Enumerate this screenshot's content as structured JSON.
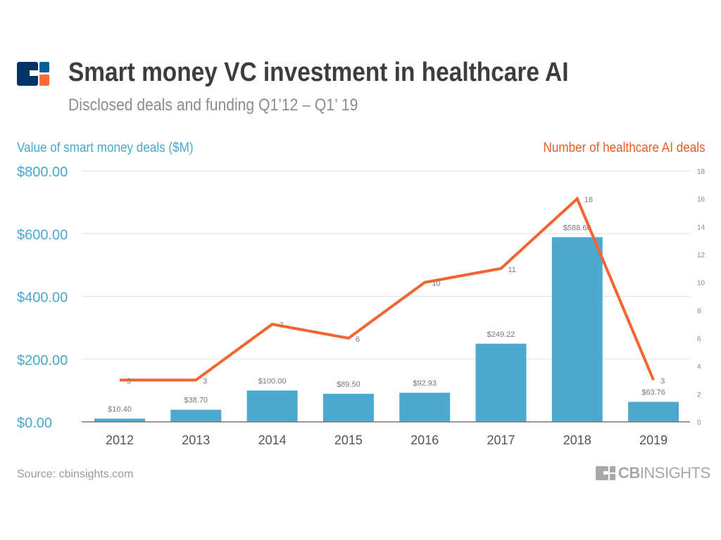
{
  "title": "Smart money VC investment in healthcare AI",
  "subtitle": "Disclosed deals and funding Q1’12 – Q1’ 19",
  "source": "Source: cbinsights.com",
  "brand": {
    "bold": "CB",
    "light": "INSIGHTS"
  },
  "colors": {
    "bars": "#4ea9cf",
    "line": "#f26531",
    "left_axis": "#4aa8cf",
    "right_axis": "#f15a24"
  },
  "chart_data": {
    "type": "bar+line",
    "categories": [
      "2012",
      "2013",
      "2014",
      "2015",
      "2016",
      "2017",
      "2018",
      "2019"
    ],
    "series": [
      {
        "name": "Value of smart money deals ($M)",
        "type": "bar",
        "axis": "left",
        "values": [
          10.4,
          38.7,
          100.0,
          89.5,
          92.93,
          249.22,
          588.66,
          63.76
        ],
        "labels": [
          "$10.40",
          "$38.70",
          "$100.00",
          "$89.50",
          "$92.93",
          "$249.22",
          "$588.66",
          "$63.76"
        ]
      },
      {
        "name": "Number of healthcare AI deals",
        "type": "line",
        "axis": "right",
        "values": [
          3,
          3,
          7,
          6,
          10,
          11,
          16,
          3
        ]
      }
    ],
    "ylabel_left": "Value of smart money deals ($M)",
    "ylabel_right": "Number of healthcare AI deals",
    "ylim_left": [
      0,
      800
    ],
    "yticks_left": [
      "$0.00",
      "$200.00",
      "$400.00",
      "$600.00",
      "$800.00"
    ],
    "ylim_right": [
      0,
      18
    ],
    "yticks_right": [
      "0",
      "2",
      "4",
      "6",
      "8",
      "10",
      "12",
      "14",
      "16",
      "18"
    ],
    "grid": true
  }
}
